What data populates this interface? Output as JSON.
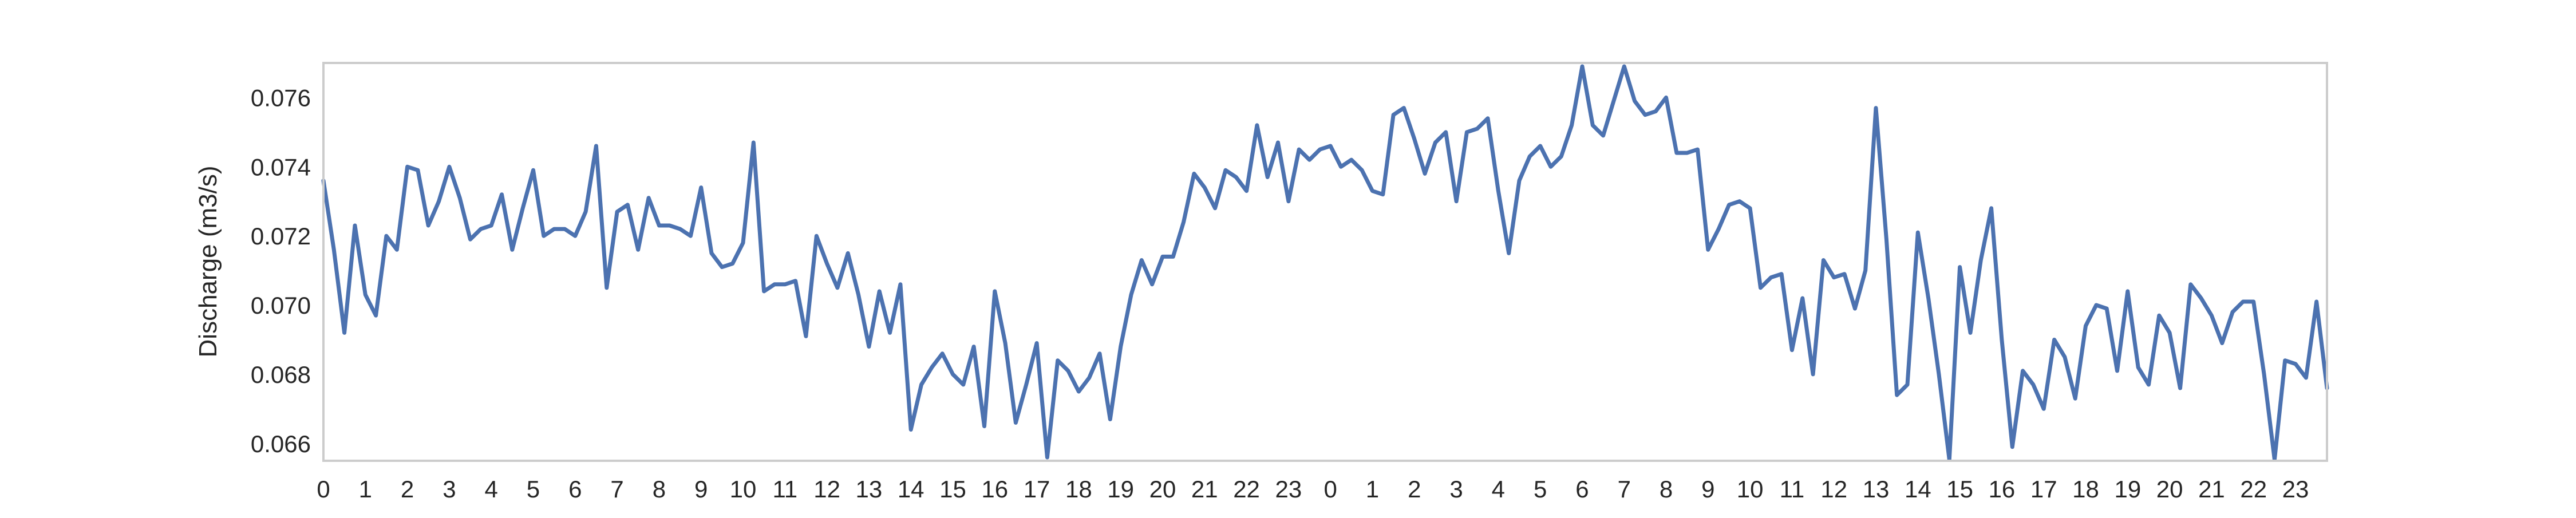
{
  "chart_data": {
    "type": "line",
    "title": "",
    "xlabel": "",
    "ylabel": "Discharge (m3/s)",
    "xlim": [
      0,
      47.75
    ],
    "ylim": [
      0.0655,
      0.077
    ],
    "yticks": [
      0.066,
      0.068,
      0.07,
      0.072,
      0.074,
      0.076
    ],
    "ytick_labels": [
      "0.066",
      "0.068",
      "0.070",
      "0.072",
      "0.074",
      "0.076"
    ],
    "xticks": [
      0,
      1,
      2,
      3,
      4,
      5,
      6,
      7,
      8,
      9,
      10,
      11,
      12,
      13,
      14,
      15,
      16,
      17,
      18,
      19,
      20,
      21,
      22,
      23,
      24,
      25,
      26,
      27,
      28,
      29,
      30,
      31,
      32,
      33,
      34,
      35,
      36,
      37,
      38,
      39,
      40,
      41,
      42,
      43,
      44,
      45,
      46,
      47
    ],
    "xtick_labels": [
      "0",
      "1",
      "2",
      "3",
      "4",
      "5",
      "6",
      "7",
      "8",
      "9",
      "10",
      "11",
      "12",
      "13",
      "14",
      "15",
      "16",
      "17",
      "18",
      "19",
      "20",
      "21",
      "22",
      "23",
      "0",
      "1",
      "2",
      "3",
      "4",
      "5",
      "6",
      "7",
      "8",
      "9",
      "10",
      "11",
      "12",
      "13",
      "14",
      "15",
      "16",
      "17",
      "18",
      "19",
      "20",
      "21",
      "22",
      "23"
    ],
    "grid": false,
    "colors": {
      "line": "#4c72b0",
      "frame": "#cccccc",
      "background": "#ffffff"
    },
    "series": [
      {
        "x": [
          0,
          0.25,
          0.5,
          0.75,
          1,
          1.25,
          1.5,
          1.75,
          2,
          2.25,
          2.5,
          2.75,
          3,
          3.25,
          3.5,
          3.75,
          4,
          4.25,
          4.5,
          4.75,
          5,
          5.25,
          5.5,
          5.75,
          6,
          6.25,
          6.5,
          6.75,
          7,
          7.25,
          7.5,
          7.75,
          8,
          8.25,
          8.5,
          8.75,
          9,
          9.25,
          9.5,
          9.75,
          10,
          10.25,
          10.5,
          10.75,
          11,
          11.25,
          11.5,
          11.75,
          12,
          12.25,
          12.5,
          12.75,
          13,
          13.25,
          13.5,
          13.75,
          14,
          14.25,
          14.5,
          14.75,
          15,
          15.25,
          15.5,
          15.75,
          16,
          16.25,
          16.5,
          16.75,
          17,
          17.25,
          17.5,
          17.75,
          18,
          18.25,
          18.5,
          18.75,
          19,
          19.25,
          19.5,
          19.75,
          20,
          20.25,
          20.5,
          20.75,
          21,
          21.25,
          21.5,
          21.75,
          22,
          22.25,
          22.5,
          22.75,
          23,
          23.25,
          23.5,
          23.75,
          24,
          24.25,
          24.5,
          24.75,
          25,
          25.25,
          25.5,
          25.75,
          26,
          26.25,
          26.5,
          26.75,
          27,
          27.25,
          27.5,
          27.75,
          28,
          28.25,
          28.5,
          28.75,
          29,
          29.25,
          29.5,
          29.75,
          30,
          30.25,
          30.5,
          30.75,
          31,
          31.25,
          31.5,
          31.75,
          32,
          32.25,
          32.5,
          32.75,
          33,
          33.25,
          33.5,
          33.75,
          34,
          34.25,
          34.5,
          34.75,
          35,
          35.25,
          35.5,
          35.75,
          36,
          36.25,
          36.5,
          36.75,
          37,
          37.25,
          37.5,
          37.75,
          38,
          38.25,
          38.5,
          38.75,
          39,
          39.25,
          39.5,
          39.75,
          40,
          40.25,
          40.5,
          40.75,
          41,
          41.25,
          41.5,
          41.75,
          42,
          42.25,
          42.5,
          42.75,
          43,
          43.25,
          43.5,
          43.75,
          44,
          44.25,
          44.5,
          44.75,
          45,
          45.25,
          45.5,
          45.75,
          46,
          46.25,
          46.5,
          46.75,
          47,
          47.25,
          47.5,
          47.75
        ],
        "values": [
          0.0736,
          0.0716,
          0.0692,
          0.0723,
          0.0703,
          0.0697,
          0.072,
          0.0716,
          0.074,
          0.0739,
          0.0723,
          0.073,
          0.074,
          0.0731,
          0.0719,
          0.0722,
          0.0723,
          0.0732,
          0.0716,
          0.0728,
          0.0739,
          0.072,
          0.0722,
          0.0722,
          0.072,
          0.0727,
          0.0746,
          0.0705,
          0.0727,
          0.0729,
          0.0716,
          0.0731,
          0.0723,
          0.0723,
          0.0722,
          0.072,
          0.0734,
          0.0715,
          0.0711,
          0.0712,
          0.0718,
          0.0747,
          0.0704,
          0.0706,
          0.0706,
          0.0707,
          0.0691,
          0.072,
          0.0712,
          0.0705,
          0.0715,
          0.0703,
          0.0688,
          0.0704,
          0.0692,
          0.0706,
          0.0664,
          0.0677,
          0.0682,
          0.0686,
          0.068,
          0.0677,
          0.0688,
          0.0665,
          0.0704,
          0.0689,
          0.0666,
          0.0677,
          0.0689,
          0.0656,
          0.0684,
          0.0681,
          0.0675,
          0.0679,
          0.0686,
          0.0667,
          0.0688,
          0.0703,
          0.0713,
          0.0706,
          0.0714,
          0.0714,
          0.0724,
          0.0738,
          0.0734,
          0.0728,
          0.0739,
          0.0737,
          0.0733,
          0.0752,
          0.0737,
          0.0747,
          0.073,
          0.0745,
          0.0742,
          0.0745,
          0.0746,
          0.074,
          0.0742,
          0.0739,
          0.0733,
          0.0732,
          0.0755,
          0.0757,
          0.0748,
          0.0738,
          0.0747,
          0.075,
          0.073,
          0.075,
          0.0751,
          0.0754,
          0.0733,
          0.0715,
          0.0736,
          0.0743,
          0.0746,
          0.074,
          0.0743,
          0.0752,
          0.0769,
          0.0752,
          0.0749,
          0.0759,
          0.0769,
          0.0759,
          0.0755,
          0.0756,
          0.076,
          0.0744,
          0.0744,
          0.0745,
          0.0716,
          0.0722,
          0.0729,
          0.073,
          0.0728,
          0.0705,
          0.0708,
          0.0709,
          0.0687,
          0.0702,
          0.068,
          0.0713,
          0.0708,
          0.0709,
          0.0699,
          0.071,
          0.0757,
          0.0719,
          0.0674,
          0.0677,
          0.0721,
          0.0702,
          0.068,
          0.0655,
          0.0711,
          0.0692,
          0.0713,
          0.0728,
          0.069,
          0.0659,
          0.0681,
          0.0677,
          0.067,
          0.069,
          0.0685,
          0.0673,
          0.0694,
          0.07,
          0.0699,
          0.0681,
          0.0704,
          0.0682,
          0.0677,
          0.0697,
          0.0692,
          0.0676,
          0.0706,
          0.0702,
          0.0697,
          0.0689,
          0.0698,
          0.0701,
          0.0701,
          0.068,
          0.0655,
          0.0684,
          0.0683,
          0.0679,
          0.0701,
          0.0676
        ]
      }
    ]
  }
}
